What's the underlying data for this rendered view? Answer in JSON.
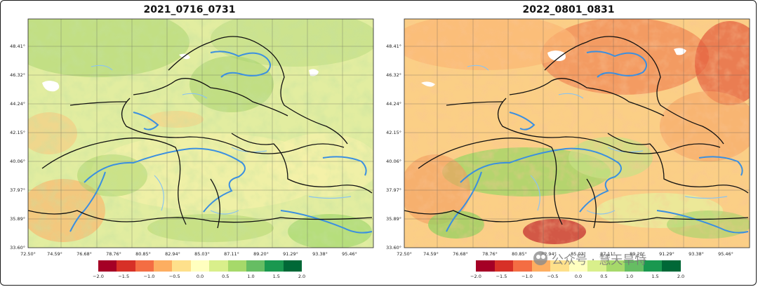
{
  "maps": [
    {
      "title": "2021_0716_0731",
      "tone": "green",
      "lat_ticks": [
        "48.41°",
        "46.32°",
        "44.24°",
        "42.15°",
        "40.06°",
        "37.97°",
        "35.89°",
        "33.60°"
      ],
      "lon_ticks": [
        "72.50°",
        "74.59°",
        "76.68°",
        "78.76°",
        "80.85°",
        "82.94°",
        "85.03°",
        "87.11°",
        "89.20°",
        "91.29°",
        "93.38°",
        "95.46°"
      ]
    },
    {
      "title": "2022_0801_0831",
      "tone": "red",
      "lat_ticks": [
        "48.41°",
        "46.32°",
        "44.24°",
        "42.15°",
        "40.06°",
        "37.97°",
        "35.89°",
        "33.60°"
      ],
      "lon_ticks": [
        "72.50°",
        "74.59°",
        "76.68°",
        "78.76°",
        "80.85°",
        "82.94°",
        "85.03°",
        "87.11°",
        "89.20°",
        "91.29°",
        "93.38°",
        "95.46°"
      ]
    }
  ],
  "colorbar": {
    "ticks": [
      "−2.0",
      "−1.5",
      "−1.0",
      "−0.5",
      "0.0",
      "0.5",
      "1.0",
      "1.5",
      "2.0"
    ],
    "min": -2.0,
    "max": 2.0,
    "colors": [
      "#a50026",
      "#d73027",
      "#f46d43",
      "#fdae61",
      "#fee08b",
      "#ffffbf",
      "#d9ef8b",
      "#a6d96a",
      "#66bd63",
      "#1a9850",
      "#006837"
    ]
  },
  "watermark": {
    "icon": "wechat-icon",
    "text": "公众号 · 慧天旱特"
  }
}
